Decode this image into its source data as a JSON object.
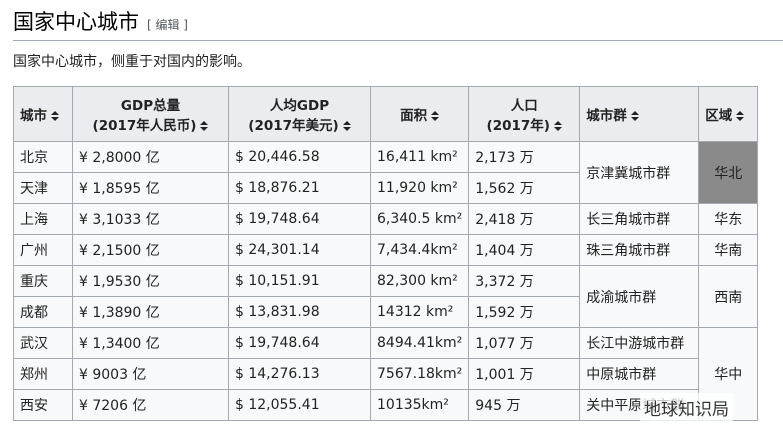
{
  "header": {
    "title": "国家中心城市",
    "edit": "[ 编辑 ]"
  },
  "intro": "国家中心城市，侧重于对国内的影响。",
  "table": {
    "headers": [
      [
        "城市"
      ],
      [
        "GDP总量",
        "(2017年人民币)"
      ],
      [
        "人均GDP",
        "(2017年美元)"
      ],
      [
        "面积"
      ],
      [
        "人口",
        "(2017年)"
      ],
      [
        "城市群"
      ],
      [
        "区域"
      ]
    ],
    "rows": [
      [
        "北京",
        "¥ 2,8000 亿",
        "$ 20,446.58",
        "16,411 km²",
        "2,173 万",
        "京津冀城市群",
        "华北"
      ],
      [
        "天津",
        "¥ 1,8595 亿",
        "$ 18,876.21",
        "11,920 km²",
        "1,562 万"
      ],
      [
        "上海",
        "¥ 3,1033 亿",
        "$ 19,748.64",
        "6,340.5 km²",
        "2,418 万",
        "长三角城市群",
        "华东"
      ],
      [
        "广州",
        "¥ 2,1500 亿",
        "$ 24,301.14",
        "7,434.4km²",
        "1,404 万",
        "珠三角城市群",
        "华南"
      ],
      [
        "重庆",
        "¥ 1,9530 亿",
        "$ 10,151.91",
        "82,300 km²",
        "3,372 万",
        "成渝城市群",
        "西南"
      ],
      [
        "成都",
        "¥ 1,3890 亿",
        "$ 13,831.98",
        "14312 km²",
        "1,592 万"
      ],
      [
        "武汉",
        "¥ 1,3400 亿",
        "$ 19,748.64",
        "8494.41km²",
        "1,077 万",
        "长江中游城市群",
        "华中"
      ],
      [
        "郑州",
        "¥ 9003 亿",
        "$ 14,276.13",
        "7567.18km²",
        "1,001 万",
        "中原城市群"
      ],
      [
        "西安",
        "¥ 7206 亿",
        "$ 12,055.41",
        "10135km²",
        "945 万",
        "关中平原城市群"
      ]
    ]
  },
  "watermark": "地球知识局"
}
